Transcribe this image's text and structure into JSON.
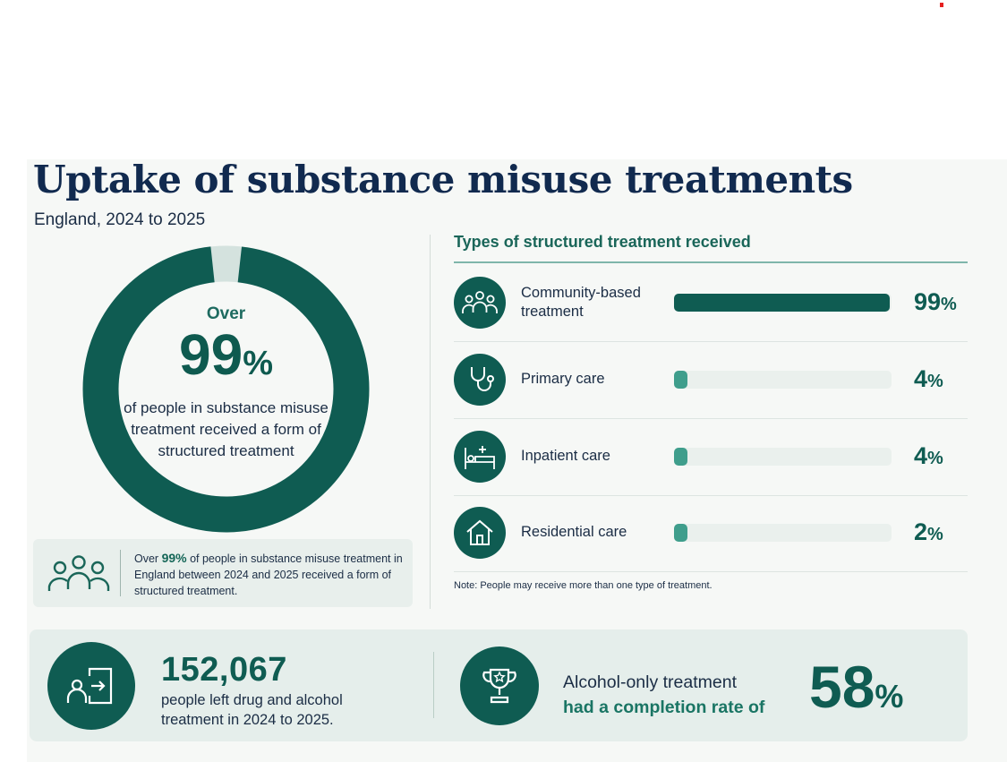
{
  "title": "Uptake of substance misuse treatments",
  "subtitle": "England, 2024 to 2025",
  "donut": {
    "over_label": "Over",
    "value": "99",
    "unit": "%",
    "description": "of people in substance misuse treatment received a form of structured treatment",
    "fill_fraction": 0.99
  },
  "note_box": {
    "prefix": "Over ",
    "value": "99%",
    "text": " of people in substance misuse treatment in England between 2024 and 2025 received a form of structured treatment."
  },
  "types": {
    "heading": "Types of structured treatment received",
    "note": "Note: People may receive more than one type of treatment."
  },
  "bottom": {
    "left_number": "152,067",
    "left_desc": "people left drug and alcohol treatment in 2024 to 2025.",
    "right_line1": "Alcohol-only treatment",
    "right_line2": "had a completion rate of",
    "right_value": "58",
    "right_unit": "%"
  },
  "colors": {
    "primary": "#0f5c52",
    "accent": "#3f9e8c",
    "title": "#112a4f"
  },
  "chart_data": {
    "type": "bar",
    "orientation": "horizontal",
    "title": "Types of structured treatment received",
    "categories": [
      "Community-based treatment",
      "Primary care",
      "Inpatient care",
      "Residential care"
    ],
    "values": [
      99,
      4,
      4,
      2
    ],
    "value_labels": [
      "99",
      "4",
      "4",
      "2"
    ],
    "unit": "%",
    "icons": [
      "people-group-icon",
      "stethoscope-icon",
      "hospital-bed-icon",
      "house-icon"
    ],
    "xlim": [
      0,
      100
    ]
  }
}
